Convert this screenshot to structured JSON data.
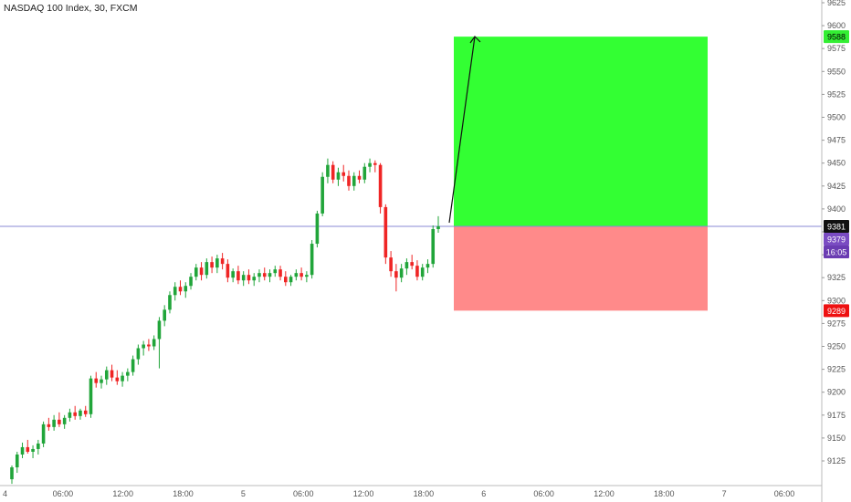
{
  "header": {
    "title": "NASDAQ 100 Index, 30, FXCM"
  },
  "colors": {
    "up": "#26a69a",
    "up_candle": "#21a53a",
    "down": "#ef2525",
    "profit_zone": "#33ff33",
    "loss_zone": "#ff8a8a",
    "price_line": "#8a8ad6",
    "axis_text": "#555555"
  },
  "chart_data": {
    "type": "candlestick",
    "title": "NASDAQ 100 Index, 30, FXCM",
    "ylim": [
      9105,
      9630
    ],
    "y_ticks": [
      9125,
      9150,
      9175,
      9200,
      9225,
      9250,
      9275,
      9300,
      9325,
      9350,
      9375,
      9400,
      9425,
      9450,
      9475,
      9500,
      9525,
      9550,
      9575,
      9600,
      9625
    ],
    "x_tick_labels": [
      "4",
      "06:00",
      "12:00",
      "18:00",
      "5",
      "06:00",
      "12:00",
      "18:00",
      "6",
      "06:00",
      "12:00",
      "18:00",
      "7",
      "06:00"
    ],
    "price_labels": {
      "target": "9588",
      "current": "9381",
      "last": "9379",
      "countdown": "16:05",
      "stop": "9289"
    },
    "position": {
      "entry": 9381,
      "target": 9588,
      "stop": 9289
    },
    "ohlc": [
      [
        9105,
        9120,
        9100,
        9118
      ],
      [
        9118,
        9135,
        9112,
        9132
      ],
      [
        9132,
        9145,
        9128,
        9140
      ],
      [
        9140,
        9148,
        9133,
        9135
      ],
      [
        9135,
        9142,
        9128,
        9138
      ],
      [
        9138,
        9148,
        9132,
        9144
      ],
      [
        9144,
        9168,
        9140,
        9165
      ],
      [
        9165,
        9172,
        9158,
        9162
      ],
      [
        9162,
        9175,
        9158,
        9170
      ],
      [
        9170,
        9178,
        9162,
        9165
      ],
      [
        9165,
        9175,
        9160,
        9172
      ],
      [
        9172,
        9182,
        9168,
        9178
      ],
      [
        9178,
        9185,
        9170,
        9174
      ],
      [
        9174,
        9182,
        9170,
        9180
      ],
      [
        9180,
        9185,
        9173,
        9176
      ],
      [
        9176,
        9218,
        9172,
        9215
      ],
      [
        9215,
        9222,
        9205,
        9210
      ],
      [
        9210,
        9218,
        9204,
        9214
      ],
      [
        9214,
        9228,
        9208,
        9224
      ],
      [
        9224,
        9230,
        9212,
        9216
      ],
      [
        9216,
        9224,
        9208,
        9212
      ],
      [
        9212,
        9222,
        9206,
        9218
      ],
      [
        9218,
        9226,
        9212,
        9222
      ],
      [
        9222,
        9240,
        9218,
        9236
      ],
      [
        9236,
        9252,
        9230,
        9248
      ],
      [
        9248,
        9256,
        9240,
        9252
      ],
      [
        9252,
        9258,
        9245,
        9250
      ],
      [
        9250,
        9262,
        9246,
        9258
      ],
      [
        9258,
        9282,
        9226,
        9278
      ],
      [
        9278,
        9295,
        9272,
        9290
      ],
      [
        9290,
        9310,
        9286,
        9306
      ],
      [
        9306,
        9320,
        9300,
        9315
      ],
      [
        9315,
        9322,
        9306,
        9310
      ],
      [
        9310,
        9320,
        9303,
        9316
      ],
      [
        9316,
        9330,
        9312,
        9326
      ],
      [
        9326,
        9340,
        9322,
        9336
      ],
      [
        9336,
        9342,
        9322,
        9328
      ],
      [
        9328,
        9346,
        9324,
        9342
      ],
      [
        9342,
        9348,
        9330,
        9336
      ],
      [
        9336,
        9350,
        9330,
        9346
      ],
      [
        9346,
        9352,
        9334,
        9340
      ],
      [
        9340,
        9345,
        9320,
        9325
      ],
      [
        9325,
        9335,
        9320,
        9332
      ],
      [
        9332,
        9338,
        9318,
        9322
      ],
      [
        9322,
        9332,
        9316,
        9328
      ],
      [
        9328,
        9334,
        9318,
        9322
      ],
      [
        9322,
        9330,
        9316,
        9326
      ],
      [
        9326,
        9334,
        9320,
        9330
      ],
      [
        9330,
        9336,
        9322,
        9326
      ],
      [
        9326,
        9334,
        9320,
        9330
      ],
      [
        9330,
        9338,
        9326,
        9334
      ],
      [
        9334,
        9338,
        9322,
        9326
      ],
      [
        9326,
        9332,
        9316,
        9320
      ],
      [
        9320,
        9328,
        9316,
        9326
      ],
      [
        9326,
        9334,
        9322,
        9330
      ],
      [
        9330,
        9336,
        9322,
        9326
      ],
      [
        9326,
        9332,
        9320,
        9328
      ],
      [
        9328,
        9366,
        9324,
        9362
      ],
      [
        9362,
        9398,
        9358,
        9395
      ],
      [
        9395,
        9440,
        9392,
        9435
      ],
      [
        9435,
        9455,
        9428,
        9448
      ],
      [
        9448,
        9452,
        9428,
        9432
      ],
      [
        9432,
        9445,
        9425,
        9440
      ],
      [
        9440,
        9448,
        9430,
        9436
      ],
      [
        9436,
        9442,
        9420,
        9425
      ],
      [
        9425,
        9440,
        9420,
        9436
      ],
      [
        9436,
        9442,
        9428,
        9432
      ],
      [
        9432,
        9450,
        9428,
        9446
      ],
      [
        9446,
        9455,
        9440,
        9450
      ],
      [
        9450,
        9453,
        9440,
        9448
      ],
      [
        9448,
        9450,
        9395,
        9402
      ],
      [
        9402,
        9405,
        9340,
        9347
      ],
      [
        9347,
        9354,
        9326,
        9332
      ],
      [
        9332,
        9340,
        9310,
        9325
      ],
      [
        9325,
        9340,
        9320,
        9335
      ],
      [
        9335,
        9346,
        9328,
        9342
      ],
      [
        9342,
        9350,
        9334,
        9338
      ],
      [
        9338,
        9344,
        9322,
        9326
      ],
      [
        9326,
        9340,
        9322,
        9336
      ],
      [
        9336,
        9345,
        9330,
        9340
      ],
      [
        9340,
        9382,
        9336,
        9378
      ],
      [
        9378,
        9392,
        9374,
        9381
      ]
    ]
  }
}
